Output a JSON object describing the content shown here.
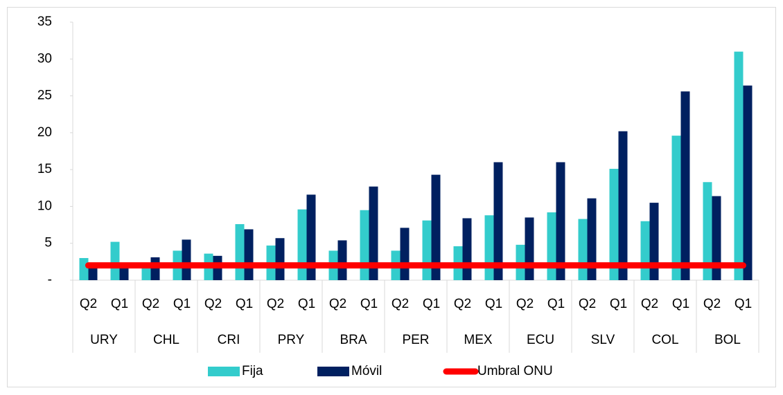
{
  "chart_data": {
    "type": "bar",
    "groups": [
      "URY",
      "CHL",
      "CRI",
      "PRY",
      "BRA",
      "PER",
      "MEX",
      "ECU",
      "SLV",
      "COL",
      "BOL"
    ],
    "categories": [
      "Q2",
      "Q1",
      "Q2",
      "Q1",
      "Q2",
      "Q1",
      "Q2",
      "Q1",
      "Q2",
      "Q1",
      "Q2",
      "Q1",
      "Q2",
      "Q1",
      "Q2",
      "Q1",
      "Q2",
      "Q1",
      "Q2",
      "Q1",
      "Q2",
      "Q1"
    ],
    "series": [
      {
        "name": "Fija",
        "color": "#33cccc",
        "values": [
          3.0,
          5.2,
          1.8,
          4.0,
          3.6,
          7.6,
          4.7,
          9.6,
          4.0,
          9.5,
          4.0,
          8.1,
          4.6,
          8.8,
          4.8,
          9.2,
          8.3,
          15.1,
          8.0,
          19.6,
          13.3,
          31.0
        ]
      },
      {
        "name": "Móvil",
        "color": "#002060",
        "values": [
          1.9,
          1.6,
          3.1,
          5.5,
          3.3,
          6.9,
          5.7,
          11.6,
          5.4,
          12.7,
          7.1,
          14.3,
          8.4,
          16.0,
          8.5,
          16.0,
          11.1,
          20.2,
          10.5,
          25.6,
          11.4,
          26.4
        ]
      },
      {
        "name": "Umbral ONU",
        "type": "line",
        "color": "#ff0000",
        "values": [
          2,
          2,
          2,
          2,
          2,
          2,
          2,
          2,
          2,
          2,
          2,
          2,
          2,
          2,
          2,
          2,
          2,
          2,
          2,
          2,
          2,
          2
        ]
      }
    ],
    "ylim": [
      0,
      35
    ],
    "yticks": [
      {
        "value": 0,
        "label": "-"
      },
      5,
      10,
      15,
      20,
      25,
      30,
      35
    ],
    "legend": "bottom"
  }
}
